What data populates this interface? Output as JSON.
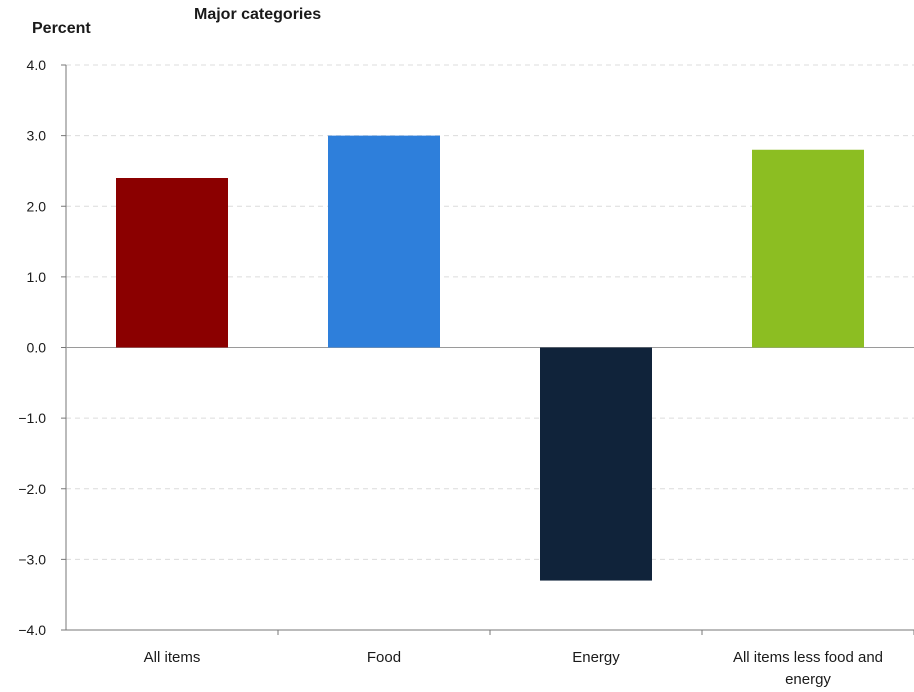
{
  "chart_data": {
    "type": "bar",
    "title": "Major categories",
    "ylabel": "Percent",
    "xlabel": "",
    "ylim": [
      -4.0,
      4.0
    ],
    "yticks": [
      "4.0",
      "3.0",
      "2.0",
      "1.0",
      "0.0",
      "−1.0",
      "−2.0",
      "−3.0",
      "−4.0"
    ],
    "categories": [
      [
        "All items"
      ],
      [
        "Food"
      ],
      [
        "Energy"
      ],
      [
        "All items less food and",
        "energy"
      ]
    ],
    "values": [
      2.4,
      3.0,
      -3.3,
      2.8
    ],
    "colors": [
      "#8b0000",
      "#2e7fdb",
      "#10233a",
      "#8cbe22"
    ],
    "grid": true,
    "legend": "none"
  }
}
